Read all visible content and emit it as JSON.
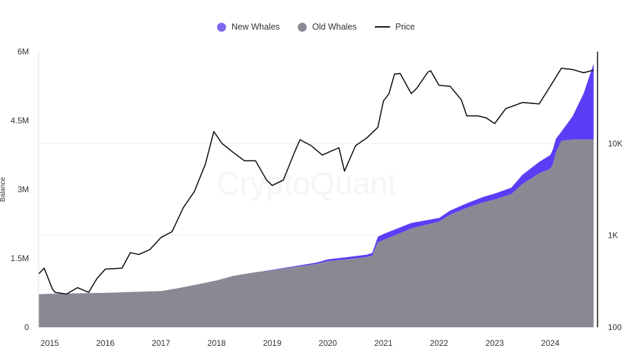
{
  "chart_data": {
    "type": "area",
    "watermark": "CryptoQuant",
    "legend_position": "top-center",
    "grid": true,
    "colors": {
      "new_whales": "#5b3df5",
      "old_whales": "#8b8894",
      "price": "#111111"
    },
    "legend": [
      {
        "name": "New Whales",
        "marker": "dot",
        "color": "#7b68ee"
      },
      {
        "name": "Old Whales",
        "marker": "dot",
        "color": "#8b8894"
      },
      {
        "name": "Price",
        "marker": "line",
        "color": "#111111"
      }
    ],
    "xlim": [
      2014.8,
      2024.85
    ],
    "x_ticks": [
      "2015",
      "2016",
      "2017",
      "2018",
      "2019",
      "2020",
      "2021",
      "2022",
      "2023",
      "2024"
    ],
    "y_left": {
      "label": "Balance",
      "ylim": [
        0,
        6000000
      ],
      "ticks": [
        0,
        1500000,
        3000000,
        4500000,
        6000000
      ],
      "tick_labels": [
        "0",
        "1.5M",
        "3M",
        "4.5M",
        "6M"
      ]
    },
    "y_right": {
      "scale": "log",
      "ylim": [
        100,
        100000
      ],
      "ticks": [
        100,
        1000,
        10000
      ],
      "tick_labels": [
        "100",
        "1K",
        "10K"
      ]
    },
    "series": [
      {
        "name": "Old Whales",
        "x": [
          2014.8,
          2015.0,
          2015.5,
          2016.0,
          2016.5,
          2017.0,
          2017.3,
          2017.6,
          2018.0,
          2018.3,
          2018.7,
          2019.0,
          2019.5,
          2019.8,
          2020.0,
          2020.5,
          2020.7,
          2020.8,
          2020.9,
          2021.0,
          2021.5,
          2022.0,
          2022.2,
          2022.5,
          2022.8,
          2023.0,
          2023.3,
          2023.5,
          2023.8,
          2024.0,
          2024.05,
          2024.1,
          2024.2,
          2024.4,
          2024.6,
          2024.78
        ],
        "values": [
          720000,
          730000,
          740000,
          750000,
          770000,
          790000,
          850000,
          920000,
          1020000,
          1120000,
          1200000,
          1240000,
          1330000,
          1380000,
          1440000,
          1500000,
          1530000,
          1560000,
          1850000,
          1900000,
          2150000,
          2300000,
          2450000,
          2600000,
          2720000,
          2780000,
          2900000,
          3120000,
          3350000,
          3450000,
          3560000,
          3800000,
          4060000,
          4090000,
          4090000,
          4090000
        ]
      },
      {
        "name": "New Whales",
        "x": [
          2014.8,
          2015.0,
          2015.5,
          2016.0,
          2016.5,
          2017.0,
          2017.3,
          2017.6,
          2018.0,
          2018.3,
          2018.7,
          2019.0,
          2019.5,
          2019.8,
          2020.0,
          2020.5,
          2020.7,
          2020.8,
          2020.9,
          2021.0,
          2021.5,
          2022.0,
          2022.2,
          2022.5,
          2022.8,
          2023.0,
          2023.3,
          2023.5,
          2023.8,
          2024.0,
          2024.05,
          2024.1,
          2024.2,
          2024.4,
          2024.6,
          2024.78
        ],
        "values": [
          0,
          0,
          0,
          0,
          0,
          0,
          0,
          0,
          0,
          0,
          0,
          10000,
          20000,
          30000,
          40000,
          50000,
          50000,
          60000,
          120000,
          130000,
          120000,
          80000,
          90000,
          100000,
          120000,
          130000,
          140000,
          200000,
          250000,
          300000,
          320000,
          300000,
          200000,
          500000,
          1000000,
          1650000
        ]
      },
      {
        "name": "Price",
        "axis": "right",
        "x": [
          2014.8,
          2014.9,
          2015.05,
          2015.1,
          2015.3,
          2015.5,
          2015.7,
          2015.85,
          2016.0,
          2016.3,
          2016.45,
          2016.6,
          2016.8,
          2017.0,
          2017.2,
          2017.4,
          2017.6,
          2017.8,
          2017.95,
          2018.1,
          2018.3,
          2018.5,
          2018.7,
          2018.9,
          2019.0,
          2019.2,
          2019.4,
          2019.5,
          2019.7,
          2019.9,
          2020.2,
          2020.3,
          2020.5,
          2020.7,
          2020.9,
          2021.0,
          2021.1,
          2021.2,
          2021.3,
          2021.5,
          2021.6,
          2021.8,
          2021.85,
          2022.0,
          2022.2,
          2022.4,
          2022.5,
          2022.7,
          2022.85,
          2023.0,
          2023.2,
          2023.5,
          2023.8,
          2024.0,
          2024.2,
          2024.4,
          2024.6,
          2024.78
        ],
        "values": [
          380,
          440,
          260,
          240,
          230,
          270,
          240,
          340,
          430,
          440,
          650,
          620,
          700,
          950,
          1100,
          2000,
          3000,
          6000,
          13500,
          10000,
          8000,
          6500,
          6500,
          4000,
          3500,
          4000,
          8000,
          11000,
          9500,
          7500,
          9000,
          5000,
          9500,
          11500,
          15000,
          29000,
          35000,
          57000,
          58000,
          35000,
          40000,
          60000,
          62000,
          43000,
          42000,
          30000,
          20000,
          20000,
          19000,
          16500,
          24000,
          28000,
          27000,
          42000,
          66000,
          64000,
          59000,
          63000
        ]
      }
    ]
  }
}
